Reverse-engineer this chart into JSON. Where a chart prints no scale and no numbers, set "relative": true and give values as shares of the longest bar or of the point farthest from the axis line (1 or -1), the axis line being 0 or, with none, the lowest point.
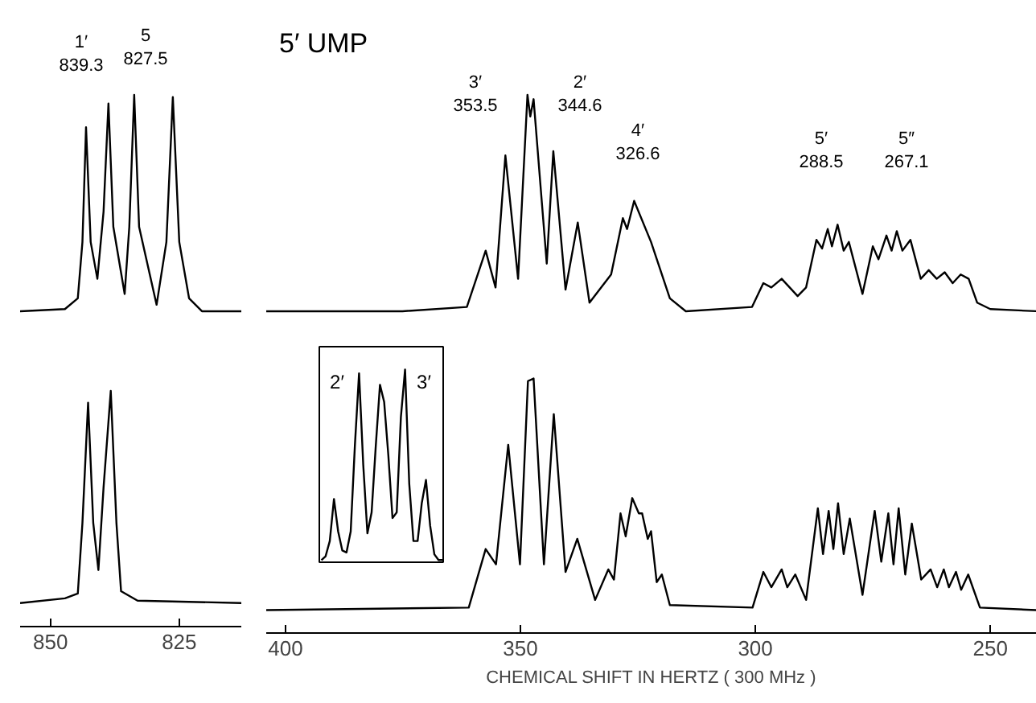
{
  "chart_data": [
    {
      "type": "line",
      "relative": true,
      "color": "#000000",
      "tick_labels": false,
      "xlim": [
        855.9,
        812.8
      ],
      "x": [
        855.9,
        847.2,
        844.7,
        843.8,
        843.1,
        842.2,
        840.9,
        839.7,
        838.75,
        837.8,
        835.6,
        834.7,
        833.75,
        832.8,
        829.4,
        827.5,
        826.25,
        825,
        823.1,
        820.6,
        812.8
      ],
      "values": [
        0,
        0.01,
        0.06,
        0.32,
        0.85,
        0.32,
        0.15,
        0.46,
        0.96,
        0.39,
        0.08,
        0.39,
        1.0,
        0.39,
        0.03,
        0.32,
        0.99,
        0.32,
        0.06,
        0,
        0
      ],
      "annotations": [
        "1′\n839.3",
        "5\n827.5"
      ]
    },
    {
      "type": "line",
      "relative": true,
      "color": "#000000",
      "tick_labels": false,
      "xlim": [
        404.1,
        240.1
      ],
      "title": "5′ UMP",
      "x": [
        404.1,
        375.1,
        361.4,
        357.4,
        355.3,
        353.2,
        350.5,
        348.5,
        347.9,
        347.2,
        344.4,
        343.0,
        340.4,
        337.8,
        335.3,
        330.7,
        328.2,
        327.3,
        325.8,
        322.2,
        318.2,
        314.8,
        300.7,
        298.3,
        296.6,
        294.4,
        292.7,
        291.0,
        289.2,
        287.0,
        285.8,
        284.6,
        283.7,
        282.5,
        281.2,
        280.1,
        277.2,
        275.0,
        273.8,
        272.1,
        271.0,
        269.9,
        268.7,
        267.0,
        264.8,
        263.1,
        261.4,
        259.7,
        258.0,
        256.3,
        254.6,
        252.8,
        250.0,
        240.1
      ],
      "values": [
        0,
        0,
        0.02,
        0.28,
        0.11,
        0.72,
        0.15,
        1.0,
        0.9,
        0.98,
        0.22,
        0.74,
        0.1,
        0.41,
        0.04,
        0.17,
        0.43,
        0.38,
        0.51,
        0.32,
        0.06,
        0,
        0.02,
        0.13,
        0.11,
        0.15,
        0.11,
        0.07,
        0.11,
        0.33,
        0.29,
        0.38,
        0.3,
        0.4,
        0.28,
        0.32,
        0.08,
        0.3,
        0.24,
        0.35,
        0.28,
        0.37,
        0.28,
        0.33,
        0.15,
        0.19,
        0.15,
        0.18,
        0.13,
        0.17,
        0.15,
        0.04,
        0.01,
        0
      ],
      "annotations": [
        "3′\n353.5",
        "2′\n344.6",
        "4′\n326.6",
        "5′\n288.5",
        "5″\n267.1"
      ]
    },
    {
      "type": "line",
      "relative": true,
      "color": "#000000",
      "tick_labels": "x",
      "xlim": [
        855.9,
        812.8
      ],
      "xticks": [
        850,
        825
      ],
      "x": [
        855.9,
        847.2,
        844.7,
        843.8,
        842.7,
        841.7,
        840.7,
        839.7,
        838.3,
        837.2,
        836.3,
        833.1,
        812.8
      ],
      "values": [
        0.1,
        0.12,
        0.14,
        0.44,
        0.95,
        0.44,
        0.24,
        0.59,
        1.0,
        0.44,
        0.15,
        0.11,
        0.1
      ]
    },
    {
      "type": "line",
      "relative": true,
      "color": "#000000",
      "tick_labels": "x",
      "xlim": [
        404.1,
        240.1
      ],
      "xticks": [
        400,
        350,
        300,
        250
      ],
      "xlabel": "CHEMICAL SHIFT IN HERTZ ( 300 MHz )",
      "x": [
        404.1,
        361.0,
        357.4,
        355.2,
        352.6,
        350.1,
        348.4,
        347.2,
        345.0,
        342.9,
        340.4,
        337.9,
        334.1,
        331.3,
        330.1,
        328.7,
        327.6,
        326.2,
        324.8,
        324.1,
        322.9,
        322.2,
        321.0,
        319.9,
        318.2,
        300.6,
        298.3,
        296.6,
        294.4,
        293.2,
        291.5,
        289.2,
        286.7,
        285.6,
        284.4,
        283.4,
        282.4,
        281.2,
        279.9,
        277.2,
        274.6,
        273.2,
        271.7,
        270.6,
        269.5,
        268.1,
        266.7,
        264.7,
        262.7,
        261.3,
        259.9,
        258.8,
        257.3,
        256.2,
        254.7,
        252.2,
        240.1
      ],
      "values": [
        0.09,
        0.1,
        0.33,
        0.27,
        0.74,
        0.27,
        0.99,
        1.0,
        0.27,
        0.86,
        0.24,
        0.37,
        0.13,
        0.25,
        0.21,
        0.47,
        0.38,
        0.53,
        0.47,
        0.47,
        0.37,
        0.4,
        0.2,
        0.23,
        0.11,
        0.1,
        0.24,
        0.18,
        0.25,
        0.18,
        0.23,
        0.13,
        0.49,
        0.31,
        0.48,
        0.33,
        0.51,
        0.31,
        0.45,
        0.15,
        0.48,
        0.28,
        0.47,
        0.27,
        0.49,
        0.23,
        0.43,
        0.21,
        0.25,
        0.18,
        0.25,
        0.18,
        0.24,
        0.17,
        0.23,
        0.1,
        0.09
      ]
    },
    {
      "type": "line",
      "relative": true,
      "color": "#000000",
      "tick_labels": false,
      "categories": [
        null,
        null,
        null,
        null,
        null,
        null,
        null,
        null,
        null,
        null,
        null,
        null,
        null,
        null,
        null,
        null,
        null,
        null,
        null,
        null,
        null,
        null,
        null,
        null,
        null,
        null,
        null,
        null,
        null,
        null
      ],
      "values": [
        0,
        0.02,
        0.1,
        0.32,
        0.15,
        0.05,
        0.04,
        0.15,
        0.6,
        0.98,
        0.5,
        0.14,
        0.25,
        0.6,
        0.92,
        0.83,
        0.55,
        0.22,
        0.25,
        0.75,
        1.0,
        0.4,
        0.1,
        0.1,
        0.3,
        0.42,
        0.18,
        0.03,
        0,
        0
      ],
      "annotations": [
        "2′",
        "3′"
      ]
    }
  ]
}
